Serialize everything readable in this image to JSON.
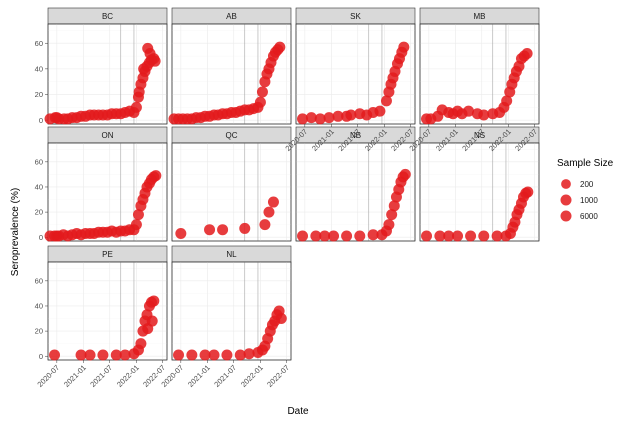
{
  "chart_data": {
    "type": "scatter",
    "ylabel": "Seroprevalence (%)",
    "xlabel": "Date",
    "ylim": [
      -3,
      75
    ],
    "yticks": [
      0,
      20,
      40,
      60
    ],
    "xlim": [
      "2020-05-01",
      "2022-07-31"
    ],
    "xticks": [
      "2020-07",
      "2021-01",
      "2021-07",
      "2022-01",
      "2022-07"
    ],
    "vlines": [
      "2021-09-15",
      "2021-12-15"
    ],
    "color": "#e31a1c",
    "legend": {
      "title": "Sample Size",
      "placement": "right",
      "entries": [
        {
          "label": "200",
          "size": 200
        },
        {
          "label": "1000",
          "size": 1000
        },
        {
          "label": "6000",
          "size": 6000
        }
      ]
    },
    "panels": [
      {
        "name": "BC",
        "points": [
          [
            "2020-05-15",
            1,
            1500
          ],
          [
            "2020-06-20",
            2,
            1200
          ],
          [
            "2020-07-01",
            2,
            6000
          ],
          [
            "2020-07-15",
            1,
            4000
          ],
          [
            "2020-08-20",
            1,
            800
          ],
          [
            "2020-09-15",
            1,
            1000
          ],
          [
            "2020-10-15",
            2,
            700
          ],
          [
            "2020-11-15",
            2,
            600
          ],
          [
            "2020-12-15",
            3,
            900
          ],
          [
            "2021-01-15",
            3,
            1000
          ],
          [
            "2021-02-15",
            4,
            1200
          ],
          [
            "2021-03-15",
            4,
            800
          ],
          [
            "2021-04-15",
            4,
            700
          ],
          [
            "2021-05-15",
            4,
            900
          ],
          [
            "2021-06-15",
            4,
            1000
          ],
          [
            "2021-07-15",
            5,
            800
          ],
          [
            "2021-08-15",
            5,
            900
          ],
          [
            "2021-09-15",
            5,
            900
          ],
          [
            "2021-10-15",
            6,
            1000
          ],
          [
            "2021-11-15",
            7,
            1000
          ],
          [
            "2021-12-15",
            6,
            900
          ],
          [
            "2022-01-01",
            10,
            800
          ],
          [
            "2022-01-15",
            18,
            900
          ],
          [
            "2022-02-01",
            28,
            1000
          ],
          [
            "2022-02-15",
            33,
            1000
          ],
          [
            "2022-03-01",
            38,
            900
          ],
          [
            "2022-03-15",
            42,
            800
          ],
          [
            "2022-04-01",
            45,
            800
          ],
          [
            "2022-04-15",
            47,
            700
          ],
          [
            "2022-05-01",
            48,
            700
          ],
          [
            "2022-03-20",
            56,
            500
          ],
          [
            "2022-04-05",
            52,
            500
          ],
          [
            "2022-02-20",
            40,
            600
          ],
          [
            "2022-01-20",
            22,
            700
          ],
          [
            "2022-05-10",
            46,
            600
          ]
        ]
      },
      {
        "name": "AB",
        "points": [
          [
            "2020-05-15",
            1,
            1200
          ],
          [
            "2020-06-15",
            1,
            900
          ],
          [
            "2020-07-15",
            1,
            1000
          ],
          [
            "2020-08-15",
            1,
            800
          ],
          [
            "2020-09-15",
            1,
            900
          ],
          [
            "2020-10-15",
            2,
            1000
          ],
          [
            "2020-11-15",
            2,
            900
          ],
          [
            "2020-12-15",
            3,
            1000
          ],
          [
            "2021-01-15",
            3,
            900
          ],
          [
            "2021-02-15",
            4,
            900
          ],
          [
            "2021-03-15",
            4,
            900
          ],
          [
            "2021-04-15",
            5,
            900
          ],
          [
            "2021-05-15",
            5,
            900
          ],
          [
            "2021-06-15",
            6,
            900
          ],
          [
            "2021-07-15",
            6,
            800
          ],
          [
            "2021-08-15",
            7,
            900
          ],
          [
            "2021-09-15",
            8,
            900
          ],
          [
            "2021-10-15",
            8,
            1000
          ],
          [
            "2021-11-15",
            9,
            1000
          ],
          [
            "2021-12-15",
            10,
            900
          ],
          [
            "2022-01-01",
            14,
            800
          ],
          [
            "2022-01-15",
            22,
            900
          ],
          [
            "2022-02-01",
            30,
            900
          ],
          [
            "2022-02-15",
            36,
            900
          ],
          [
            "2022-03-01",
            40,
            800
          ],
          [
            "2022-03-15",
            45,
            800
          ],
          [
            "2022-04-01",
            50,
            800
          ],
          [
            "2022-04-15",
            53,
            800
          ],
          [
            "2022-05-01",
            55,
            700
          ],
          [
            "2022-05-15",
            57,
            700
          ]
        ]
      },
      {
        "name": "SK",
        "points": [
          [
            "2020-06-15",
            1,
            600
          ],
          [
            "2020-08-15",
            2,
            5000
          ],
          [
            "2020-10-15",
            1,
            600
          ],
          [
            "2020-12-15",
            2,
            800
          ],
          [
            "2021-02-15",
            3,
            1000
          ],
          [
            "2021-04-15",
            3,
            900
          ],
          [
            "2021-05-15",
            4,
            1000
          ],
          [
            "2021-07-15",
            5,
            1000
          ],
          [
            "2021-09-01",
            4,
            800
          ],
          [
            "2021-10-15",
            6,
            900
          ],
          [
            "2021-12-01",
            7,
            900
          ],
          [
            "2022-01-15",
            15,
            800
          ],
          [
            "2022-02-01",
            22,
            800
          ],
          [
            "2022-02-15",
            28,
            800
          ],
          [
            "2022-03-01",
            33,
            800
          ],
          [
            "2022-03-15",
            38,
            800
          ],
          [
            "2022-04-01",
            44,
            800
          ],
          [
            "2022-04-15",
            48,
            700
          ],
          [
            "2022-05-01",
            53,
            700
          ],
          [
            "2022-05-15",
            57,
            600
          ]
        ]
      },
      {
        "name": "MB",
        "points": [
          [
            "2020-06-15",
            1,
            800
          ],
          [
            "2020-07-15",
            1,
            1500
          ],
          [
            "2020-09-01",
            3,
            600
          ],
          [
            "2020-10-01",
            8,
            600
          ],
          [
            "2020-11-15",
            6,
            600
          ],
          [
            "2020-12-15",
            5,
            600
          ],
          [
            "2021-01-15",
            7,
            600
          ],
          [
            "2021-02-15",
            5,
            600
          ],
          [
            "2021-04-01",
            7,
            600
          ],
          [
            "2021-06-01",
            5,
            600
          ],
          [
            "2021-07-15",
            4,
            600
          ],
          [
            "2021-09-15",
            5,
            600
          ],
          [
            "2021-11-01",
            6,
            600
          ],
          [
            "2021-12-01",
            10,
            600
          ],
          [
            "2021-12-20",
            15,
            600
          ],
          [
            "2022-01-10",
            22,
            600
          ],
          [
            "2022-01-25",
            28,
            600
          ],
          [
            "2022-02-10",
            33,
            600
          ],
          [
            "2022-02-25",
            38,
            600
          ],
          [
            "2022-03-15",
            42,
            600
          ],
          [
            "2022-04-01",
            48,
            600
          ],
          [
            "2022-04-20",
            50,
            500
          ],
          [
            "2022-05-10",
            52,
            500
          ]
        ]
      },
      {
        "name": "ON",
        "points": [
          [
            "2020-05-15",
            1,
            2000
          ],
          [
            "2020-06-15",
            1,
            1500
          ],
          [
            "2020-07-01",
            1,
            6000
          ],
          [
            "2020-07-15",
            1,
            3000
          ],
          [
            "2020-08-15",
            2,
            1500
          ],
          [
            "2020-09-15",
            1,
            1200
          ],
          [
            "2020-10-15",
            2,
            1000
          ],
          [
            "2020-11-15",
            3,
            1500
          ],
          [
            "2020-12-15",
            2,
            1200
          ],
          [
            "2021-01-15",
            3,
            1500
          ],
          [
            "2021-02-15",
            3,
            1200
          ],
          [
            "2021-03-15",
            3,
            1000
          ],
          [
            "2021-04-15",
            4,
            1200
          ],
          [
            "2021-05-15",
            4,
            1000
          ],
          [
            "2021-06-15",
            4,
            1000
          ],
          [
            "2021-07-15",
            5,
            1000
          ],
          [
            "2021-08-15",
            4,
            1000
          ],
          [
            "2021-09-15",
            5,
            1000
          ],
          [
            "2021-10-15",
            5,
            1000
          ],
          [
            "2021-11-15",
            6,
            1000
          ],
          [
            "2021-12-15",
            6,
            1000
          ],
          [
            "2022-01-01",
            10,
            1000
          ],
          [
            "2022-01-15",
            18,
            900
          ],
          [
            "2022-02-01",
            25,
            900
          ],
          [
            "2022-02-15",
            30,
            900
          ],
          [
            "2022-03-01",
            35,
            800
          ],
          [
            "2022-03-15",
            40,
            800
          ],
          [
            "2022-04-01",
            43,
            800
          ],
          [
            "2022-04-15",
            46,
            800
          ],
          [
            "2022-05-01",
            48,
            700
          ],
          [
            "2022-05-15",
            49,
            700
          ]
        ]
      },
      {
        "name": "QC",
        "points": [
          [
            "2020-07-01",
            3,
            5000
          ],
          [
            "2021-01-15",
            6,
            800
          ],
          [
            "2021-04-15",
            6,
            3000
          ],
          [
            "2021-09-15",
            7,
            3000
          ],
          [
            "2022-02-01",
            10,
            800
          ],
          [
            "2022-03-01",
            20,
            800
          ],
          [
            "2022-04-01",
            28,
            700
          ]
        ]
      },
      {
        "name": "NB",
        "points": [
          [
            "2020-06-15",
            1,
            1500
          ],
          [
            "2020-09-15",
            1,
            800
          ],
          [
            "2020-11-15",
            1,
            600
          ],
          [
            "2021-01-15",
            1,
            600
          ],
          [
            "2021-04-15",
            1,
            600
          ],
          [
            "2021-07-15",
            1,
            600
          ],
          [
            "2021-10-15",
            2,
            600
          ],
          [
            "2021-12-15",
            2,
            600
          ],
          [
            "2022-01-15",
            5,
            600
          ],
          [
            "2022-02-01",
            10,
            600
          ],
          [
            "2022-02-20",
            18,
            600
          ],
          [
            "2022-03-10",
            25,
            600
          ],
          [
            "2022-03-25",
            32,
            600
          ],
          [
            "2022-04-10",
            38,
            600
          ],
          [
            "2022-04-25",
            44,
            600
          ],
          [
            "2022-05-10",
            48,
            600
          ],
          [
            "2022-05-25",
            50,
            500
          ]
        ]
      },
      {
        "name": "NS",
        "points": [
          [
            "2020-06-15",
            1,
            1500
          ],
          [
            "2020-09-15",
            1,
            600
          ],
          [
            "2020-11-15",
            1,
            600
          ],
          [
            "2021-01-15",
            1,
            600
          ],
          [
            "2021-04-15",
            1,
            600
          ],
          [
            "2021-07-15",
            1,
            600
          ],
          [
            "2021-10-15",
            1,
            600
          ],
          [
            "2021-12-15",
            1,
            600
          ],
          [
            "2022-01-15",
            3,
            600
          ],
          [
            "2022-02-01",
            8,
            600
          ],
          [
            "2022-02-15",
            12,
            600
          ],
          [
            "2022-03-01",
            18,
            600
          ],
          [
            "2022-03-15",
            22,
            600
          ],
          [
            "2022-04-01",
            27,
            600
          ],
          [
            "2022-04-15",
            32,
            600
          ],
          [
            "2022-05-01",
            35,
            600
          ],
          [
            "2022-05-15",
            36,
            500
          ]
        ]
      },
      {
        "name": "PE",
        "points": [
          [
            "2020-06-15",
            1,
            800
          ],
          [
            "2020-12-15",
            1,
            600
          ],
          [
            "2021-02-15",
            1,
            600
          ],
          [
            "2021-05-15",
            1,
            600
          ],
          [
            "2021-08-15",
            1,
            600
          ],
          [
            "2021-10-15",
            1,
            600
          ],
          [
            "2021-12-15",
            2,
            600
          ],
          [
            "2022-01-15",
            5,
            600
          ],
          [
            "2022-02-01",
            10,
            600
          ],
          [
            "2022-02-15",
            20,
            600
          ],
          [
            "2022-03-01",
            28,
            600
          ],
          [
            "2022-03-15",
            33,
            600
          ],
          [
            "2022-04-01",
            40,
            600
          ],
          [
            "2022-04-15",
            43,
            600
          ],
          [
            "2022-05-01",
            44,
            600
          ],
          [
            "2022-04-20",
            28,
            500
          ],
          [
            "2022-03-20",
            22,
            500
          ]
        ]
      },
      {
        "name": "NL",
        "points": [
          [
            "2020-06-15",
            1,
            1500
          ],
          [
            "2020-09-15",
            1,
            600
          ],
          [
            "2020-12-15",
            1,
            600
          ],
          [
            "2021-02-15",
            1,
            600
          ],
          [
            "2021-05-15",
            1,
            600
          ],
          [
            "2021-08-15",
            1,
            600
          ],
          [
            "2021-10-15",
            2,
            600
          ],
          [
            "2021-12-15",
            3,
            600
          ],
          [
            "2022-01-15",
            5,
            600
          ],
          [
            "2022-02-01",
            8,
            600
          ],
          [
            "2022-02-20",
            14,
            600
          ],
          [
            "2022-03-10",
            20,
            600
          ],
          [
            "2022-03-25",
            25,
            600
          ],
          [
            "2022-04-10",
            28,
            600
          ],
          [
            "2022-04-25",
            33,
            600
          ],
          [
            "2022-05-10",
            36,
            600
          ],
          [
            "2022-05-25",
            30,
            500
          ]
        ]
      }
    ]
  }
}
